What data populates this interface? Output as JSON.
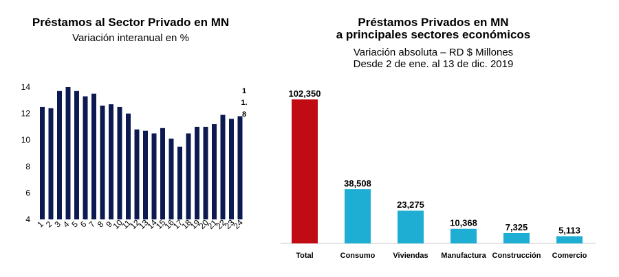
{
  "chart_data": [
    {
      "type": "bar",
      "title": "Préstamos al Sector Privado en MN",
      "subtitle": "Variación interanual en %",
      "categories": [
        "1",
        "2",
        "3",
        "4",
        "5",
        "6",
        "7",
        "8",
        "9",
        "10",
        "11",
        "12",
        "13",
        "14",
        "15",
        "16",
        "17",
        "18",
        "19",
        "20",
        "21",
        "22",
        "23",
        "24"
      ],
      "values": [
        12.5,
        12.4,
        13.7,
        14.0,
        13.7,
        13.3,
        13.5,
        12.6,
        12.7,
        12.5,
        12.0,
        10.8,
        10.7,
        10.5,
        10.9,
        10.1,
        9.5,
        10.5,
        11.0,
        11.0,
        11.2,
        11.9,
        11.6,
        11.8
      ],
      "ylim": [
        4,
        14
      ],
      "yticks": [
        4,
        6,
        8,
        10,
        12,
        14
      ],
      "annotation": "11.8",
      "bar_color": "#0d1a52"
    },
    {
      "type": "bar",
      "title": "Préstamos Privados en MN a principales sectores económicos",
      "subtitle": "Variación absoluta – RD $ Millones",
      "subtitle2": "Desde 2 de ene. al 13 de dic. 2019",
      "categories": [
        "Total",
        "Consumo",
        "Viviendas",
        "Manufactura",
        "Construcción",
        "Comercio"
      ],
      "values": [
        102350,
        38508,
        23275,
        10368,
        7325,
        5113
      ],
      "value_labels": [
        "102,350",
        "38,508",
        "23,275",
        "10,368",
        "7,325",
        "5,113"
      ],
      "colors": [
        "#c00a14",
        "#1faed3",
        "#1faed3",
        "#1faed3",
        "#1faed3",
        "#1faed3"
      ]
    }
  ],
  "text": {
    "left_title": "Préstamos al Sector Privado en MN",
    "left_subtitle": "Variación interanual en %",
    "right_title_line1": "Préstamos Privados en MN",
    "right_title_line2": "a principales sectores económicos",
    "right_subtitle_line1": "Variación absoluta – RD $ Millones",
    "right_subtitle_line2": "Desde 2 de ene. al 13 de dic. 2019"
  }
}
